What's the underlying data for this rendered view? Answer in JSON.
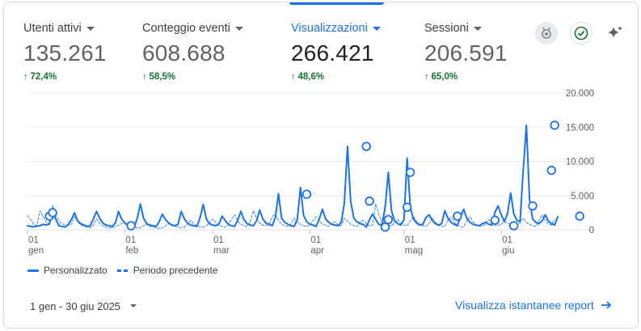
{
  "metrics": [
    {
      "label": "Utenti attivi",
      "value": "135.261",
      "change": "72,4%",
      "active": false
    },
    {
      "label": "Conteggio eventi",
      "value": "608.688",
      "change": "58,5%",
      "active": false
    },
    {
      "label": "Visualizzazioni",
      "value": "266.421",
      "change": "48,6%",
      "active": true
    },
    {
      "label": "Sessioni",
      "value": "206.591",
      "change": "65,0%",
      "active": false
    }
  ],
  "toolbar_icons": [
    "insights-badge-icon",
    "check-circle-icon",
    "sparkle-icon"
  ],
  "colors": {
    "accent": "#1a73e8",
    "positive": "#137333",
    "grid": "#e8eaed"
  },
  "chart_data": {
    "type": "line",
    "ylim": [
      0,
      20000
    ],
    "y_ticks": [
      "20.000",
      "15.000",
      "10.000",
      "5.000",
      "0"
    ],
    "x_ticks": [
      {
        "top": "01",
        "bottom": "gen"
      },
      {
        "top": "01",
        "bottom": "feb"
      },
      {
        "top": "01",
        "bottom": "mar"
      },
      {
        "top": "01",
        "bottom": "apr"
      },
      {
        "top": "01",
        "bottom": "mag"
      },
      {
        "top": "01",
        "bottom": "giu"
      }
    ],
    "x_tick_days": [
      0,
      31,
      59,
      90,
      120,
      151
    ],
    "series": [
      {
        "name": "Personalizzato",
        "style": "solid",
        "values": [
          600,
          500,
          450,
          550,
          600,
          800,
          700,
          900,
          2600,
          1600,
          600,
          500,
          400,
          800,
          1500,
          2500,
          1300,
          900,
          700,
          500,
          600,
          1600,
          2700,
          1700,
          1000,
          700,
          600,
          500,
          1000,
          2700,
          1600,
          1000,
          700,
          600,
          400,
          1700,
          3800,
          1700,
          900,
          700,
          600,
          500,
          1200,
          2300,
          1500,
          1000,
          700,
          600,
          800,
          2700,
          1600,
          1000,
          700,
          600,
          500,
          1800,
          3700,
          1600,
          900,
          700,
          600,
          800,
          2000,
          1400,
          800,
          600,
          500,
          1400,
          2700,
          1500,
          900,
          700,
          600,
          1300,
          2900,
          1600,
          1000,
          800,
          600,
          1800,
          5300,
          1700,
          1100,
          800,
          600,
          500,
          1500,
          6200,
          2100,
          1200,
          800,
          700,
          500,
          1600,
          3000,
          1600,
          1100,
          800,
          700,
          600,
          1100,
          3900,
          12200,
          4200,
          1700,
          1200,
          900,
          800,
          400,
          1500,
          2300,
          1500,
          800,
          700,
          3300,
          8400,
          2800,
          1300,
          900,
          700,
          1500,
          10500,
          3300,
          1600,
          1000,
          700,
          800,
          1800,
          2200,
          1400,
          900,
          700,
          900,
          2800,
          1700,
          1100,
          800,
          600,
          1900,
          3000,
          1700,
          1100,
          800,
          700,
          600,
          900,
          1100,
          800,
          700,
          2600,
          3500,
          2200,
          1200,
          2400,
          5400,
          2300,
          1400,
          1200,
          8700,
          15300,
          4500,
          1600,
          1100,
          900,
          1300,
          2200,
          1300,
          900,
          700,
          1900
        ]
      },
      {
        "name": "Periodo precedente",
        "style": "dashed",
        "values": [
          2100,
          1500,
          800,
          600,
          2800,
          1900,
          1100,
          700,
          3600,
          2200,
          1300,
          900,
          700,
          600,
          800,
          1900,
          1200,
          700,
          500,
          400,
          300,
          700,
          1600,
          1000,
          600,
          400,
          300,
          300,
          500,
          700,
          900,
          1100,
          700,
          500,
          400,
          300,
          300,
          600,
          800,
          500,
          400,
          300,
          200,
          300,
          600,
          900,
          700,
          500,
          400,
          300,
          400,
          800,
          1400,
          900,
          600,
          400,
          400,
          600,
          900,
          1600,
          1100,
          700,
          500,
          400,
          700,
          1500,
          2200,
          1300,
          800,
          600,
          500,
          1200,
          2800,
          1700,
          1000,
          700,
          600,
          800,
          1900,
          2300,
          1400,
          800,
          600,
          500,
          900,
          1700,
          1100,
          800,
          600,
          500,
          700,
          1300,
          1900,
          1400,
          800,
          700,
          500,
          900,
          1200,
          700,
          600,
          1700,
          1300,
          800,
          600,
          500,
          1100,
          1400,
          800,
          600,
          700,
          3800,
          2200,
          1200,
          900,
          700,
          600,
          1000,
          1500,
          900,
          700,
          600,
          1300,
          2000,
          1200,
          800,
          600,
          500,
          900,
          1800,
          1100,
          700,
          500,
          500,
          1400,
          1800,
          1100,
          700,
          500,
          400,
          1300,
          1900,
          1200,
          700,
          600,
          500,
          900,
          1500,
          900,
          700,
          600,
          800,
          1200,
          1000,
          700,
          500,
          600,
          1000,
          1700,
          1100,
          800,
          600,
          500,
          1300,
          2200,
          1400,
          900,
          700,
          1600
        ]
      }
    ],
    "markers": [
      {
        "day": 7,
        "value": 2000
      },
      {
        "day": 8,
        "value": 2500
      },
      {
        "day": 33,
        "value": 600
      },
      {
        "day": 89,
        "value": 5200
      },
      {
        "day": 108,
        "value": 12200
      },
      {
        "day": 109,
        "value": 4200
      },
      {
        "day": 114,
        "value": 400
      },
      {
        "day": 115,
        "value": 1500
      },
      {
        "day": 121,
        "value": 3300
      },
      {
        "day": 122,
        "value": 8400
      },
      {
        "day": 137,
        "value": 2000
      },
      {
        "day": 149,
        "value": 1400
      },
      {
        "day": 155,
        "value": 600
      },
      {
        "day": 161,
        "value": 3500
      },
      {
        "day": 167,
        "value": 8700
      },
      {
        "day": 168,
        "value": 15300
      },
      {
        "day": 176,
        "value": 2000
      }
    ]
  },
  "legend": {
    "current": "Personalizzato",
    "previous": "Periodo precedente"
  },
  "footer": {
    "date_range": "1 gen - 30 giu 2025",
    "report_link": "Visualizza istantanee report"
  }
}
